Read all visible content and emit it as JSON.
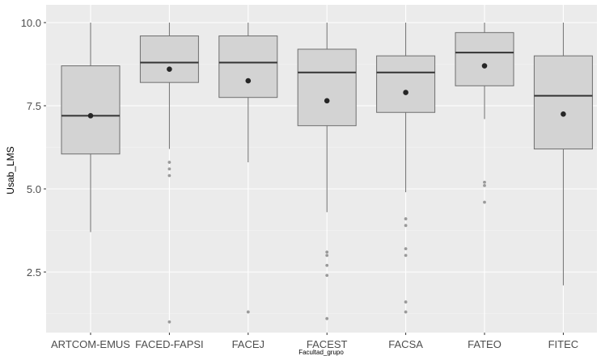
{
  "chart_data": {
    "type": "boxplot",
    "xlabel": "Facultad_grupo",
    "ylabel": "Usab_LMS",
    "ylim": [
      0.5,
      10.3
    ],
    "yticks": [
      2.5,
      5.0,
      7.5,
      10.0
    ],
    "ytick_labels": [
      "2.5",
      "5.0",
      "7.5",
      "10.0"
    ],
    "grid": true,
    "categories": [
      "ARTCOM-EMUS",
      "FACED-FAPSI",
      "FACEJ",
      "FACEST",
      "FACSA",
      "FATEO",
      "FITEC"
    ],
    "boxes": [
      {
        "category": "ARTCOM-EMUS",
        "whisker_low": 3.7,
        "q1": 6.05,
        "median": 7.2,
        "q3": 8.7,
        "whisker_high": 10.0,
        "mean": 7.2,
        "outliers": []
      },
      {
        "category": "FACED-FAPSI",
        "whisker_low": 6.2,
        "q1": 8.2,
        "median": 8.8,
        "q3": 9.6,
        "whisker_high": 10.0,
        "mean": 8.6,
        "outliers": [
          5.8,
          5.6,
          5.4,
          1.0
        ]
      },
      {
        "category": "FACEJ",
        "whisker_low": 5.8,
        "q1": 7.75,
        "median": 8.8,
        "q3": 9.6,
        "whisker_high": 10.0,
        "mean": 8.25,
        "outliers": [
          1.3
        ]
      },
      {
        "category": "FACEST",
        "whisker_low": 4.3,
        "q1": 6.9,
        "median": 8.5,
        "q3": 9.2,
        "whisker_high": 10.0,
        "mean": 7.65,
        "outliers": [
          3.1,
          3.0,
          2.7,
          2.4,
          1.1
        ]
      },
      {
        "category": "FACSA",
        "whisker_low": 4.9,
        "q1": 7.3,
        "median": 8.5,
        "q3": 9.0,
        "whisker_high": 10.0,
        "mean": 7.9,
        "outliers": [
          4.1,
          3.9,
          3.2,
          3.0,
          1.6,
          1.3
        ]
      },
      {
        "category": "FATEO",
        "whisker_low": 7.1,
        "q1": 8.1,
        "median": 9.1,
        "q3": 9.7,
        "whisker_high": 10.0,
        "mean": 8.7,
        "outliers": [
          5.2,
          5.1,
          4.6
        ]
      },
      {
        "category": "FITEC",
        "whisker_low": 2.1,
        "q1": 6.2,
        "median": 7.8,
        "q3": 9.0,
        "whisker_high": 10.0,
        "mean": 7.25,
        "outliers": []
      }
    ],
    "colors": {
      "panel_background": "#ebebeb",
      "grid_major": "#ffffff",
      "grid_minor": "#f5f5f5",
      "box_fill": "#d3d3d3",
      "box_stroke": "#6e6e6e",
      "median": "#333333",
      "whisker": "#6e6e6e",
      "outlier": "#9a9a9a",
      "mean": "#262626"
    }
  }
}
